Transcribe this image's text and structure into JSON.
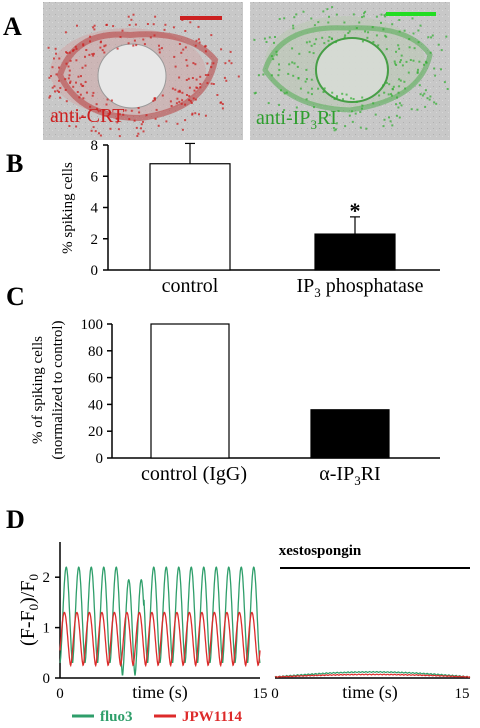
{
  "panels": {
    "A": {
      "letter": "A",
      "left_image_label": "anti-CRT",
      "right_image_label_main": "anti-IP",
      "right_image_label_sub": "3",
      "right_image_label_end": "RI",
      "colors": {
        "red": "#cc2020",
        "green": "#22cc22"
      }
    },
    "B": {
      "letter": "B",
      "ylabel": "% spiking cells",
      "yticks": [
        "0",
        "2",
        "4",
        "6",
        "8"
      ],
      "cat1": "control",
      "cat2_main": "IP",
      "cat2_sub": "3",
      "cat2_end": " phosphatase",
      "significance": "*"
    },
    "C": {
      "letter": "C",
      "ylabel_line1": "% of spiking cells",
      "ylabel_line2": "(normalized to control)",
      "yticks": [
        "0",
        "20",
        "40",
        "60",
        "80",
        "100"
      ],
      "cat1": "control (IgG)",
      "cat2_main": "α-IP",
      "cat2_sub": "3",
      "cat2_end": "RI"
    },
    "D": {
      "letter": "D",
      "ylabel": "(F-F0)/F0",
      "yticks": [
        "0",
        "1",
        "2"
      ],
      "xtick_start": "0",
      "xtick_end": "15",
      "xlabel": "time (s)",
      "treatment_label": "xestospongin",
      "legend": [
        {
          "name": "fluo3",
          "color": "#2e9e6a"
        },
        {
          "name": "JPW1114",
          "color": "#dd2a2a"
        }
      ]
    }
  },
  "chart_data": [
    {
      "type": "bar",
      "panel": "B",
      "categories": [
        "control",
        "IP3 phosphatase"
      ],
      "values": [
        6.8,
        2.3
      ],
      "errors": [
        1.3,
        1.1
      ],
      "fill": [
        "#ffffff",
        "#000000"
      ],
      "ylabel": "% spiking cells",
      "ylim": [
        0,
        8
      ]
    },
    {
      "type": "bar",
      "panel": "C",
      "categories": [
        "control (IgG)",
        "α-IP3RI"
      ],
      "values": [
        100,
        36
      ],
      "fill": [
        "#ffffff",
        "#000000"
      ],
      "ylabel": "% of spiking cells (normalized to control)",
      "ylim": [
        0,
        100
      ]
    },
    {
      "type": "line",
      "panel": "D",
      "xlabel": "time (s)",
      "ylabel": "(F-F0)/F0",
      "xlim": [
        0,
        15
      ],
      "ylim": [
        0,
        2.5
      ],
      "traces": [
        {
          "name": "fluo3",
          "condition": "control",
          "spikes": 16,
          "peak": 2.2,
          "baseline": 0.3
        },
        {
          "name": "JPW1114",
          "condition": "control",
          "spikes": 16,
          "peak": 1.3,
          "baseline": 0.25
        },
        {
          "name": "fluo3",
          "condition": "xestospongin",
          "level": 0.1
        },
        {
          "name": "JPW1114",
          "condition": "xestospongin",
          "level": 0.05
        }
      ]
    }
  ]
}
